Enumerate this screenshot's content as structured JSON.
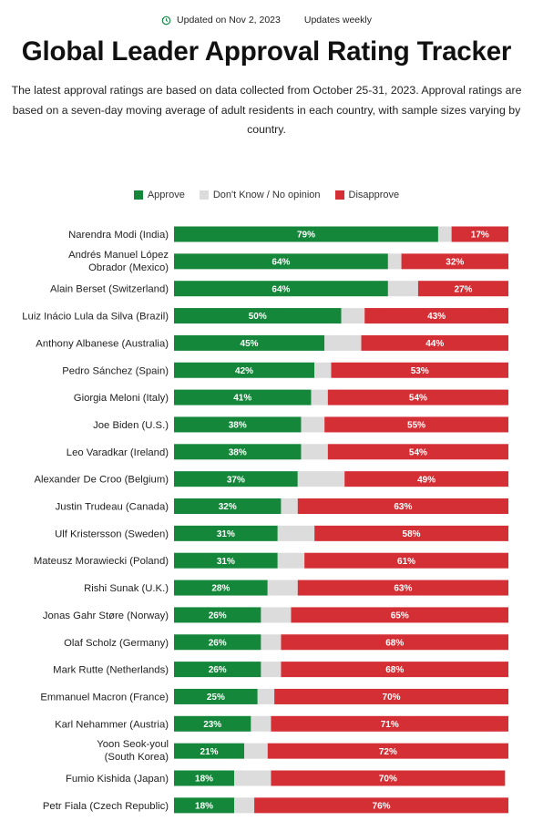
{
  "header": {
    "updated": "Updated on Nov 2, 2023",
    "frequency": "Updates weekly",
    "updated_icon": "clock-refresh-icon"
  },
  "title": "Global Leader Approval Rating Tracker",
  "description": "The latest approval ratings are based on data collected from October 25-31, 2023. Approval ratings are based on a seven-day moving average of adult residents in each country, with sample sizes varying by country.",
  "legend": {
    "approve": "Approve",
    "dont_know": "Don't Know / No opinion",
    "disapprove": "Disapprove"
  },
  "colors": {
    "approve": "#14873a",
    "dont_know": "#dcdcdc",
    "disapprove": "#d32f35"
  },
  "chart_data": {
    "type": "bar",
    "orientation": "horizontal",
    "stacked": true,
    "categories": [
      [
        "Narendra Modi (India)"
      ],
      [
        "Andrés Manuel López",
        "Obrador (Mexico)"
      ],
      [
        "Alain Berset (Switzerland)"
      ],
      [
        "Luiz Inácio Lula da Silva (Brazil)"
      ],
      [
        "Anthony Albanese (Australia)"
      ],
      [
        "Pedro Sánchez (Spain)"
      ],
      [
        "Giorgia Meloni (Italy)"
      ],
      [
        "Joe Biden (U.S.)"
      ],
      [
        "Leo Varadkar (Ireland)"
      ],
      [
        "Alexander De Croo (Belgium)"
      ],
      [
        "Justin Trudeau (Canada)"
      ],
      [
        "Ulf Kristersson (Sweden)"
      ],
      [
        "Mateusz Morawiecki (Poland)"
      ],
      [
        "Rishi Sunak (U.K.)"
      ],
      [
        "Jonas Gahr Støre (Norway)"
      ],
      [
        "Olaf Scholz (Germany)"
      ],
      [
        "Mark Rutte (Netherlands)"
      ],
      [
        "Emmanuel Macron (France)"
      ],
      [
        "Karl Nehammer (Austria)"
      ],
      [
        "Yoon Seok-youl",
        "(South Korea)"
      ],
      [
        "Fumio Kishida (Japan)"
      ],
      [
        "Petr Fiala (Czech Republic)"
      ]
    ],
    "series": [
      {
        "name": "Approve",
        "values": [
          79,
          64,
          64,
          50,
          45,
          42,
          41,
          38,
          38,
          37,
          32,
          31,
          31,
          28,
          26,
          26,
          26,
          25,
          23,
          21,
          18,
          18
        ],
        "labels": [
          "79%",
          "64%",
          "64%",
          "50%",
          "45%",
          "42%",
          "41%",
          "38%",
          "38%",
          "37%",
          "32%",
          "31%",
          "31%",
          "28%",
          "26%",
          "26%",
          "26%",
          "25%",
          "23%",
          "21%",
          "18%",
          "18%"
        ]
      },
      {
        "name": "Don't Know / No opinion",
        "values": [
          4,
          4,
          9,
          7,
          11,
          5,
          5,
          7,
          8,
          14,
          5,
          11,
          8,
          9,
          9,
          6,
          6,
          5,
          6,
          7,
          11,
          6
        ]
      },
      {
        "name": "Disapprove",
        "values": [
          17,
          32,
          27,
          43,
          44,
          53,
          54,
          55,
          54,
          49,
          63,
          58,
          61,
          63,
          65,
          68,
          68,
          70,
          71,
          72,
          70,
          76
        ],
        "labels": [
          "17%",
          "32%",
          "27%",
          "43%",
          "44%",
          "53%",
          "54%",
          "55%",
          "54%",
          "49%",
          "63%",
          "58%",
          "61%",
          "63%",
          "65%",
          "68%",
          "68%",
          "70%",
          "71%",
          "72%",
          "70%",
          "76%"
        ]
      }
    ],
    "xlim": [
      0,
      100
    ],
    "legend_position": "top",
    "grid": false
  }
}
